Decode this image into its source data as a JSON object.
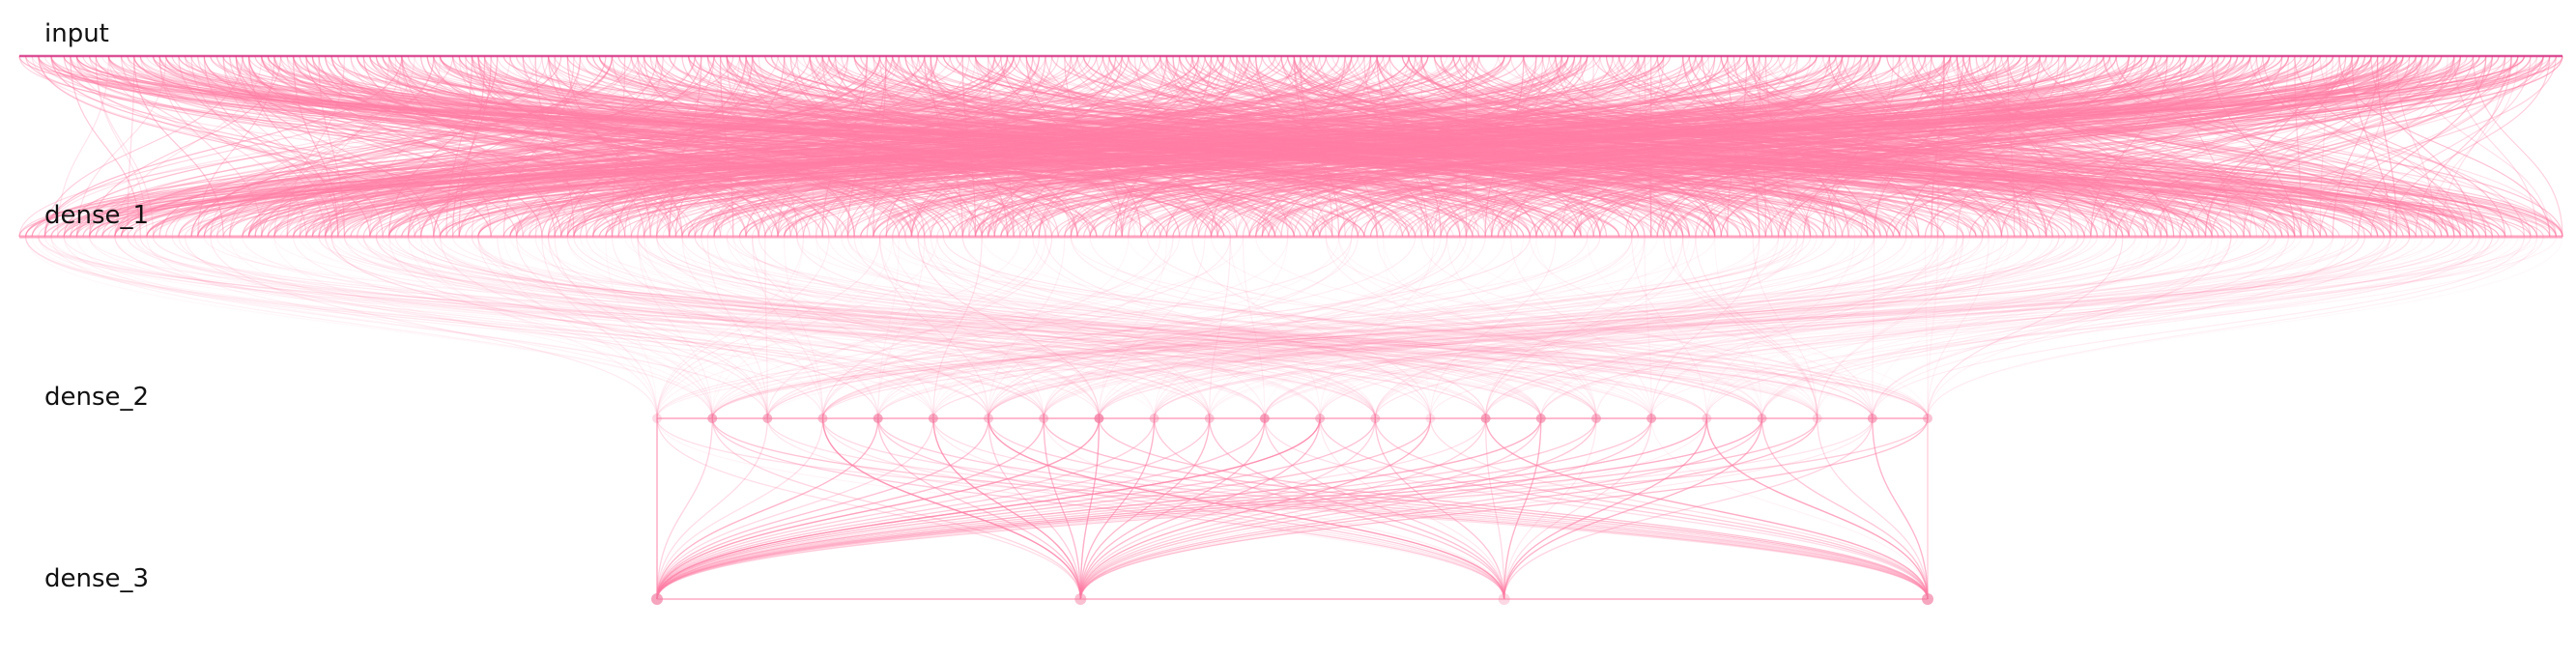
{
  "diagram": {
    "type": "neural-network-connectivity",
    "layers": [
      {
        "label": "input",
        "units": 400
      },
      {
        "label": "dense_1",
        "units": 400
      },
      {
        "label": "dense_2",
        "units": 24
      },
      {
        "label": "dense_3",
        "units": 4
      }
    ],
    "colors": {
      "input_line": "#d63384",
      "edges": "#ff7fa6",
      "nodes": "#f27aa0",
      "background": "#ffffff",
      "label": "#111111"
    }
  }
}
